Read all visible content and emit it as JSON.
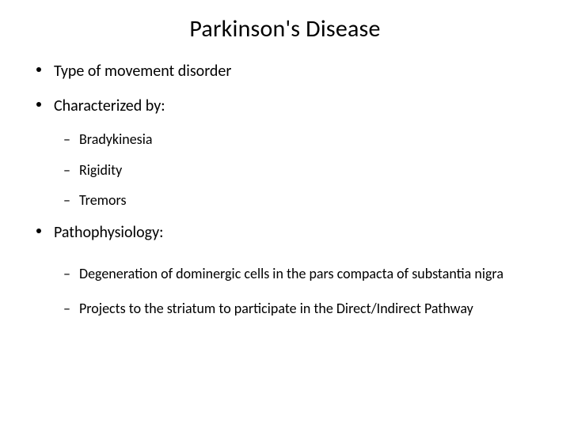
{
  "title": "Parkinson's Disease",
  "bullets": {
    "b1": "Type of movement disorder",
    "b2": "Characterized by:",
    "b2_subs": {
      "s1": "Bradykinesia",
      "s2": "Rigidity",
      "s3": "Tremors"
    },
    "b3": "Pathophysiology:",
    "b3_subs": {
      "s1": "Degeneration of dominergic cells in the pars compacta of substantia nigra",
      "s2": "Projects to the striatum to participate in the Direct/Indirect Pathway"
    }
  },
  "styling": {
    "background_color": "#ffffff",
    "text_color": "#000000",
    "title_fontsize": 30,
    "level1_fontsize": 20,
    "level2_fontsize": 18,
    "font_family": "Calibri",
    "slide_width": 720,
    "slide_height": 540
  }
}
